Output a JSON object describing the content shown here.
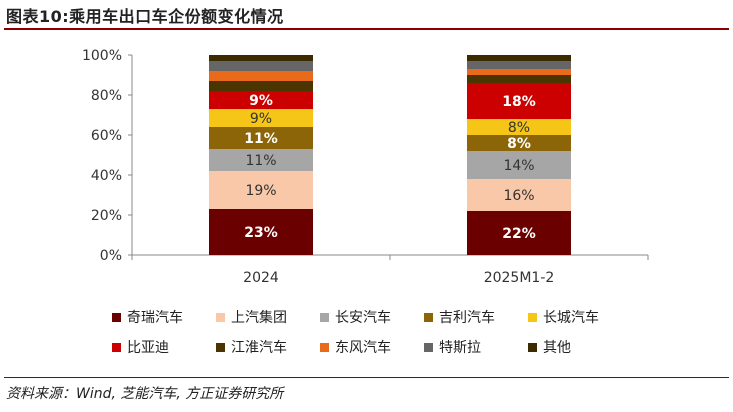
{
  "header": {
    "title": "图表10:乘用车出口车企份额变化情况"
  },
  "footer": {
    "source": "资料来源：Wind, 芝能汽车, 方正证券研究所"
  },
  "chart_data": {
    "type": "bar",
    "stacked": true,
    "categories": [
      "2024",
      "2025M1-2"
    ],
    "yticks": [
      "0%",
      "20%",
      "40%",
      "60%",
      "80%",
      "100%"
    ],
    "ylim": [
      0,
      100
    ],
    "series": [
      {
        "name": "奇瑞汽车",
        "color": "#6b0000",
        "label_color": "#ffffff",
        "bold": true,
        "values": [
          23,
          22
        ],
        "labels": [
          "23%",
          "22%"
        ]
      },
      {
        "name": "上汽集团",
        "color": "#f8c8a8",
        "label_color": "#333333",
        "bold": false,
        "values": [
          19,
          16
        ],
        "labels": [
          "19%",
          "16%"
        ]
      },
      {
        "name": "长安汽车",
        "color": "#a6a6a6",
        "label_color": "#333333",
        "bold": false,
        "values": [
          11,
          14
        ],
        "labels": [
          "11%",
          "14%"
        ]
      },
      {
        "name": "吉利汽车",
        "color": "#8b6508",
        "label_color": "#ffffff",
        "bold": true,
        "values": [
          11,
          8
        ],
        "labels": [
          "11%",
          "8%"
        ]
      },
      {
        "name": "长城汽车",
        "color": "#f5c518",
        "label_color": "#333333",
        "bold": false,
        "values": [
          9,
          8
        ],
        "labels": [
          "9%",
          "8%"
        ]
      },
      {
        "name": "比亚迪",
        "color": "#cc0000",
        "label_color": "#ffffff",
        "bold": true,
        "values": [
          9,
          18
        ],
        "labels": [
          "9%",
          "18%"
        ]
      },
      {
        "name": "江淮汽车",
        "color": "#4a3500",
        "label_color": "#ffffff",
        "bold": false,
        "values": [
          5,
          4
        ],
        "labels": [
          "",
          ""
        ]
      },
      {
        "name": "东风汽车",
        "color": "#e86a1a",
        "label_color": "#ffffff",
        "bold": false,
        "values": [
          5,
          3
        ],
        "labels": [
          "",
          ""
        ]
      },
      {
        "name": "特斯拉",
        "color": "#666666",
        "label_color": "#ffffff",
        "bold": false,
        "values": [
          5,
          4
        ],
        "labels": [
          "",
          ""
        ]
      },
      {
        "name": "其他",
        "color": "#3d2b00",
        "label_color": "#ffffff",
        "bold": false,
        "values": [
          3,
          3
        ],
        "labels": [
          "",
          ""
        ]
      }
    ]
  }
}
